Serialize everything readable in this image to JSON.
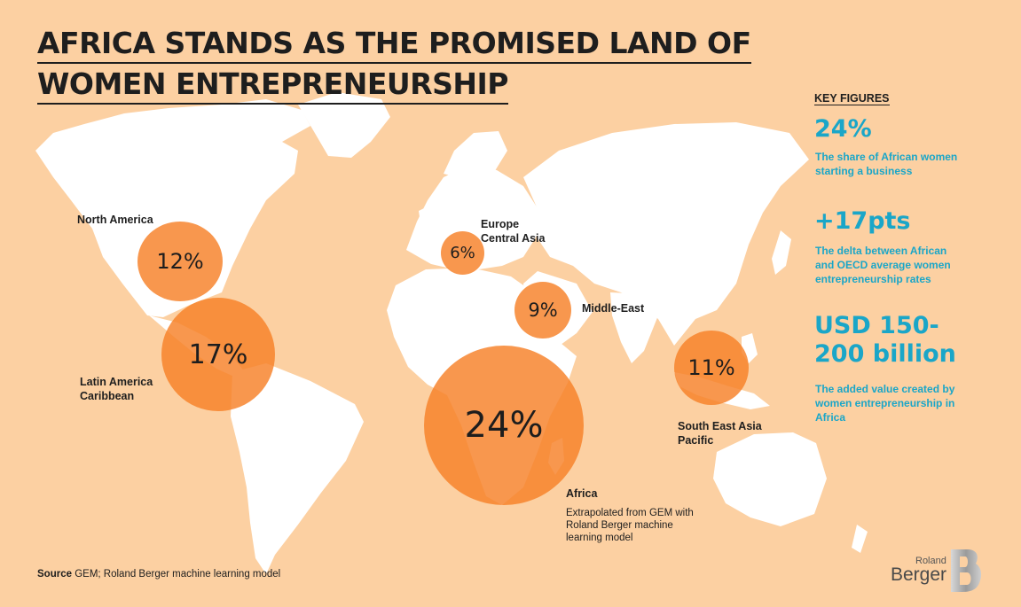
{
  "title": {
    "line1": "AFRICA STANDS AS THE PROMISED LAND OF",
    "line2": "WOMEN ENTREPRENEURSHIP"
  },
  "colors": {
    "background": "#fcd0a2",
    "land": "#ffffff",
    "bubble": "#f68027",
    "accent": "#1aa6c8",
    "text": "#1e1e1e"
  },
  "regions": [
    {
      "id": "north-america",
      "label_lines": [
        "North America"
      ],
      "value": "12%",
      "share": 12
    },
    {
      "id": "latin-america",
      "label_lines": [
        "Latin America",
        "Caribbean"
      ],
      "value": "17%",
      "share": 17
    },
    {
      "id": "europe",
      "label_lines": [
        "Europe",
        "Central Asia"
      ],
      "value": "6%",
      "share": 6
    },
    {
      "id": "middle-east",
      "label_lines": [
        "Middle-East"
      ],
      "value": "9%",
      "share": 9
    },
    {
      "id": "africa",
      "label_lines": [
        "Africa"
      ],
      "value": "24%",
      "share": 24
    },
    {
      "id": "southeast-asia",
      "label_lines": [
        "South East Asia",
        "Pacific"
      ],
      "value": "11%",
      "share": 11
    }
  ],
  "africa_note": "Extrapolated from GEM with Roland Berger machine learning model",
  "key_figures": {
    "heading": "KEY FIGURES",
    "items": [
      {
        "value_lines": [
          "24%"
        ],
        "desc_lines": [
          "The share of African women",
          "starting a business"
        ]
      },
      {
        "value_lines": [
          "+17pts"
        ],
        "desc_lines": [
          "The delta between African",
          "and OECD average women",
          "entrepreneurship rates"
        ]
      },
      {
        "value_lines": [
          "USD 150-",
          "200 billion"
        ],
        "desc_lines": [
          "The added value created by",
          "women entrepreneurship in",
          "Africa"
        ]
      }
    ]
  },
  "source": {
    "label": "Source",
    "text": "GEM; Roland Berger machine learning model"
  },
  "logo": {
    "line1": "Roland",
    "line2": "Berger"
  }
}
